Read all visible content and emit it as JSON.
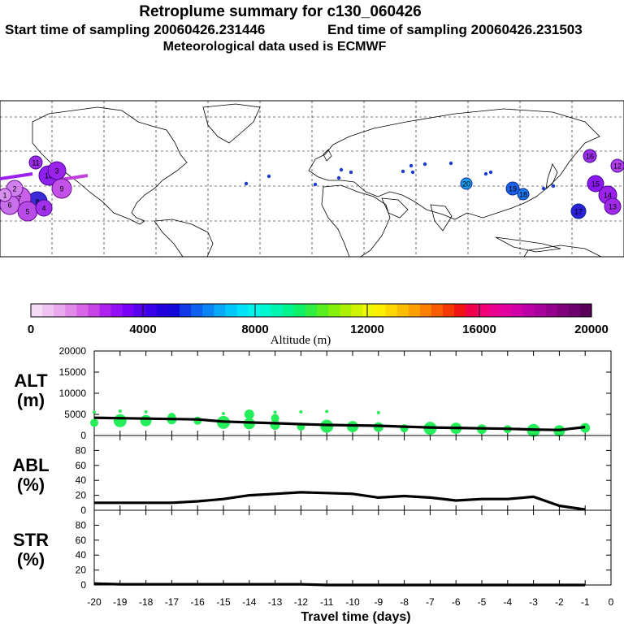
{
  "header": {
    "title": "Retroplume summary for c130_060426",
    "start_label": "Start time of sampling 20060426.231446",
    "end_label": "End time of sampling 20060426.231503",
    "met_label": "Meteorological data used is ECMWF"
  },
  "map": {
    "plume_labels": [
      "20",
      "19",
      "18",
      "17",
      "16",
      "15",
      "14",
      "13",
      "12",
      "11",
      "10",
      "9",
      "8",
      "7",
      "6",
      "5",
      "4",
      "3",
      "2",
      "1"
    ]
  },
  "colorbar": {
    "label": "Altitude (m)",
    "ticks": [
      "0",
      "4000",
      "8000",
      "12000",
      "16000",
      "20000"
    ],
    "colors": [
      "#f6dcf6",
      "#f0c4f2",
      "#eaa8ee",
      "#e28aea",
      "#d866e6",
      "#c844e6",
      "#b020ee",
      "#9410f4",
      "#7800f6",
      "#5a00f0",
      "#3c00e8",
      "#2200dc",
      "#1408d8",
      "#1038e4",
      "#0e60ee",
      "#0a84f4",
      "#06a8f8",
      "#00c8fa",
      "#00e2f8",
      "#00f4ec",
      "#00f8d0",
      "#00f6b0",
      "#00f48c",
      "#10f066",
      "#30ee40",
      "#58ee20",
      "#84f00c",
      "#acf004",
      "#d0f400",
      "#eef800",
      "#fcf000",
      "#fcd800",
      "#fcbc00",
      "#fca000",
      "#fa8000",
      "#f85e00",
      "#f43a00",
      "#f01414",
      "#f0004c",
      "#f00074",
      "#ec0090",
      "#e000a0",
      "#d000a8",
      "#bc00a8",
      "#a8009c",
      "#94008c",
      "#80007c",
      "#6c006c",
      "#580058"
    ]
  },
  "chart_data": [
    {
      "type": "line",
      "panel": "ALT",
      "ylabel_line1": "ALT",
      "ylabel_line2": "(m)",
      "x": [
        -20,
        -19,
        -18,
        -17,
        -16,
        -15,
        -14,
        -13,
        -12,
        -11,
        -10,
        -9,
        -8,
        -7,
        -6,
        -5,
        -4,
        -3,
        -2,
        -1
      ],
      "series": [
        {
          "name": "mean altitude",
          "values": [
            4200,
            4100,
            4000,
            3900,
            3800,
            3300,
            3100,
            2900,
            2700,
            2500,
            2400,
            2300,
            2100,
            1900,
            1800,
            1700,
            1600,
            1400,
            1300,
            2000
          ]
        }
      ],
      "scatter_values": [
        [
          3000,
          5500
        ],
        [
          3500,
          5800
        ],
        [
          3500,
          5600
        ],
        [
          3800,
          4400
        ],
        [
          3500
        ],
        [
          3100,
          5200
        ],
        [
          2800,
          5000
        ],
        [
          2500,
          4100,
          5500
        ],
        [
          2100,
          5600
        ],
        [
          2200,
          5700
        ],
        [
          2100
        ],
        [
          2000,
          5400
        ],
        [
          1700
        ],
        [
          1700
        ],
        [
          1700
        ],
        [
          1500
        ],
        [
          1500
        ],
        [
          1200
        ],
        [
          1100
        ],
        [
          1800
        ]
      ],
      "ylim": [
        0,
        20000
      ],
      "yticks": [
        "0",
        "5000",
        "10000",
        "15000",
        "20000"
      ]
    },
    {
      "type": "line",
      "panel": "ABL",
      "ylabel_line1": "ABL",
      "ylabel_line2": "(%)",
      "x": [
        -20,
        -19,
        -18,
        -17,
        -16,
        -15,
        -14,
        -13,
        -12,
        -11,
        -10,
        -9,
        -8,
        -7,
        -6,
        -5,
        -4,
        -3,
        -2,
        -1
      ],
      "series": [
        {
          "name": "fraction in ABL",
          "values": [
            10,
            10,
            10,
            10,
            12,
            15,
            20,
            22,
            24,
            23,
            22,
            17,
            19,
            17,
            13,
            15,
            15,
            18,
            6,
            1
          ]
        }
      ],
      "ylim": [
        0,
        100
      ],
      "yticks": [
        "0",
        "20",
        "40",
        "60",
        "80"
      ]
    },
    {
      "type": "line",
      "panel": "STR",
      "ylabel_line1": "STR",
      "ylabel_line2": "(%)",
      "x": [
        -20,
        -19,
        -18,
        -17,
        -16,
        -15,
        -14,
        -13,
        -12,
        -11,
        -10,
        -9,
        -8,
        -7,
        -6,
        -5,
        -4,
        -3,
        -2,
        -1
      ],
      "series": [
        {
          "name": "fraction in stratosphere",
          "values": [
            2,
            1,
            1,
            1,
            1,
            1,
            1,
            1,
            1,
            0,
            0,
            0,
            0,
            0,
            0,
            0,
            0,
            0,
            0,
            0
          ]
        }
      ],
      "ylim": [
        0,
        100
      ],
      "yticks": [
        "0",
        "20",
        "40",
        "60",
        "80"
      ],
      "xlabel": "Travel time (days)",
      "xticks": [
        "-20",
        "-19",
        "-18",
        "-17",
        "-16",
        "-15",
        "-14",
        "-13",
        "-12",
        "-11",
        "-10",
        "-9",
        "-8",
        "-7",
        "-6",
        "-5",
        "-4",
        "-3",
        "-2",
        "-1",
        "0"
      ]
    }
  ]
}
